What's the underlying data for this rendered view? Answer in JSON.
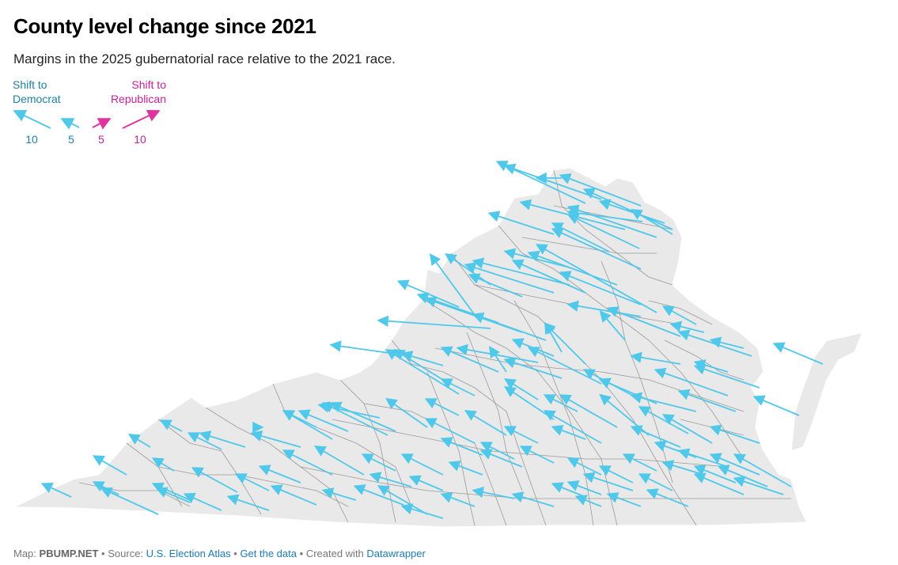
{
  "title": "County level change since 2021",
  "subtitle": "Margins in the 2025 gubernatorial race relative to the 2021 race.",
  "legend": {
    "dem_label_line1": "Shift to",
    "dem_label_line2": "Democrat",
    "rep_label_line1": "Shift to",
    "rep_label_line2": "Republican",
    "scale": [
      "10",
      "5",
      "5",
      "10"
    ],
    "dem_color": "#4fc8ea",
    "rep_color": "#e0339f"
  },
  "map": {
    "region": "Virginia",
    "land_color": "#e9e9e9",
    "border_color": "#9a9a9a",
    "arrow_color": "#4fc8ea"
  },
  "footer": {
    "map_prefix": "Map:",
    "map_author": "PBUMP.NET",
    "source_prefix": "Source:",
    "source_link": "U.S. Election Atlas",
    "data_link": "Get the data",
    "created_prefix": "Created with",
    "created_link": "Datawrapper",
    "sep": "•"
  }
}
